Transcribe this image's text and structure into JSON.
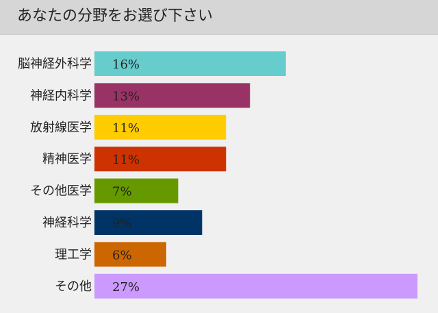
{
  "header": {
    "title": "あなたの分野をお選び下さい"
  },
  "chart_data": {
    "type": "bar",
    "orientation": "horizontal",
    "title": "あなたの分野をお選び下さい",
    "categories": [
      "脳神経外科学",
      "神経内科学",
      "放射線医学",
      "精神医学",
      "その他医学",
      "神経科学",
      "理工学",
      "その他"
    ],
    "values": [
      16,
      13,
      11,
      11,
      7,
      9,
      6,
      27
    ],
    "value_labels": [
      "16%",
      "13%",
      "11%",
      "11%",
      "7%",
      "9%",
      "6%",
      "27%"
    ],
    "colors": [
      "#66cccc",
      "#993366",
      "#ffcc00",
      "#cc3300",
      "#669900",
      "#003366",
      "#cc6600",
      "#cc99ff"
    ],
    "unit": "%",
    "xlim": [
      0,
      27
    ],
    "grid": false,
    "legend": "none"
  }
}
